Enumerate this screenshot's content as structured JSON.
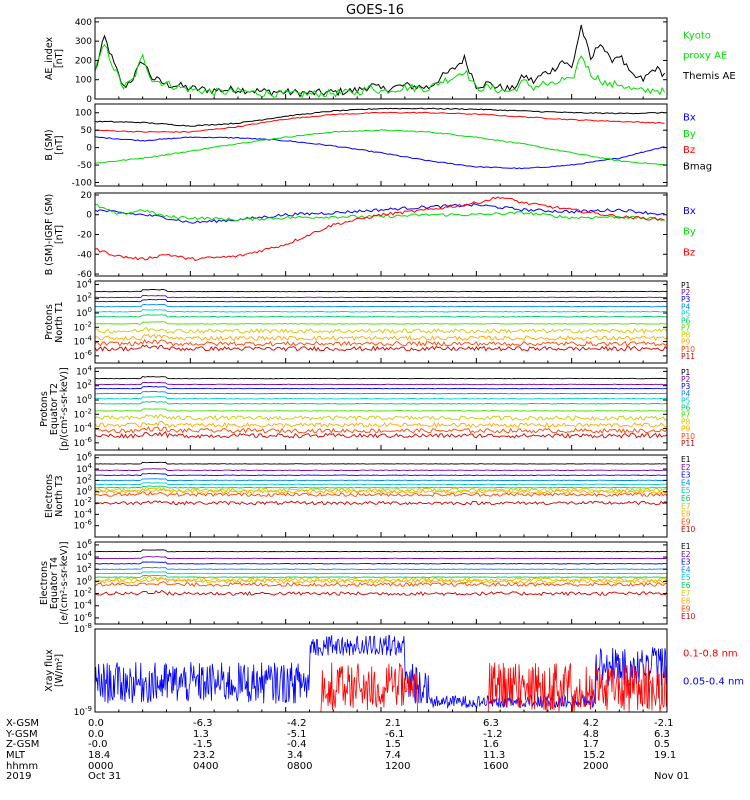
{
  "title": "GOES-16",
  "colors": {
    "black": "#000000",
    "blue": "#0000ff",
    "green": "#00dd00",
    "red": "#ff0000"
  },
  "chart_data": [
    {
      "type": "line",
      "panel": "AE index",
      "ylabel": [
        "AE_index",
        "[nT]"
      ],
      "ylim": [
        0,
        420
      ],
      "yticks": [
        "0",
        "100",
        "200",
        "300",
        "400"
      ],
      "ytick_values": [
        0,
        100,
        200,
        300,
        400
      ],
      "legend": [
        {
          "label": "Kyoto",
          "color": "green"
        },
        {
          "label": "proxy AE",
          "color": "green"
        },
        {
          "label": "Themis AE",
          "color": "black"
        }
      ],
      "series": [
        {
          "name": "Themis AE",
          "color": "black",
          "x": [
            0,
            0.4,
            0.8,
            1.2,
            1.6,
            2.0,
            2.4,
            3.0,
            3.5,
            4.0,
            5.0,
            6.0,
            7.0,
            8.0,
            9.0,
            10.0,
            11.0,
            11.6,
            12.0,
            13.0,
            14.0,
            14.5,
            15.0,
            15.5,
            16.0,
            16.5,
            17.0,
            17.5,
            18.0,
            18.4,
            18.8,
            19.2,
            19.6,
            20.0,
            20.4,
            20.8,
            21.2,
            21.6,
            22.0,
            22.5,
            23.0,
            23.5,
            24.0
          ],
          "y": [
            140,
            320,
            180,
            60,
            110,
            200,
            110,
            75,
            70,
            55,
            45,
            50,
            40,
            35,
            30,
            35,
            45,
            70,
            50,
            70,
            60,
            110,
            150,
            210,
            70,
            80,
            60,
            50,
            120,
            90,
            130,
            150,
            200,
            160,
            380,
            200,
            300,
            200,
            230,
            120,
            100,
            160,
            120
          ]
        },
        {
          "name": "Kyoto proxy AE",
          "color": "green",
          "x": [
            0,
            0.4,
            0.8,
            1.2,
            1.6,
            2.0,
            2.4,
            3.0,
            3.5,
            4.0,
            5.0,
            6.0,
            7.0,
            8.0,
            9.0,
            10.0,
            11.0,
            11.6,
            12.0,
            13.0,
            14.0,
            14.5,
            15.0,
            15.5,
            16.0,
            16.5,
            17.0,
            17.5,
            18.0,
            18.4,
            18.8,
            19.2,
            19.6,
            20.0,
            20.4,
            20.8,
            21.2,
            21.6,
            22.0,
            22.5,
            23.0,
            23.5,
            24.0
          ],
          "y": [
            150,
            280,
            160,
            60,
            100,
            220,
            100,
            80,
            60,
            50,
            35,
            40,
            30,
            25,
            25,
            30,
            35,
            60,
            40,
            60,
            55,
            90,
            110,
            150,
            55,
            60,
            45,
            40,
            90,
            60,
            80,
            70,
            100,
            90,
            230,
            130,
            100,
            70,
            80,
            50,
            40,
            50,
            30
          ]
        }
      ]
    },
    {
      "type": "line",
      "panel": "B (SM)",
      "ylabel": [
        "B (SM)",
        "[nT]"
      ],
      "ylim": [
        -110,
        125
      ],
      "yticks": [
        "-100",
        "-50",
        "0",
        "50",
        "100"
      ],
      "ytick_values": [
        -100,
        -50,
        0,
        50,
        100
      ],
      "legend": [
        {
          "label": "Bx",
          "color": "blue"
        },
        {
          "label": "By",
          "color": "green"
        },
        {
          "label": "Bz",
          "color": "red"
        },
        {
          "label": "Bmag",
          "color": "black"
        }
      ],
      "series": [
        {
          "name": "Bx",
          "color": "blue",
          "x": [
            0,
            2,
            4,
            6,
            8,
            10,
            12,
            14,
            16,
            18,
            20,
            22,
            24
          ],
          "y": [
            30,
            20,
            30,
            28,
            20,
            5,
            -15,
            -38,
            -55,
            -60,
            -50,
            -30,
            5
          ]
        },
        {
          "name": "By",
          "color": "green",
          "x": [
            0,
            2,
            4,
            6,
            8,
            10,
            12,
            14,
            16,
            18,
            20,
            22,
            24
          ],
          "y": [
            -45,
            -30,
            -10,
            12,
            30,
            45,
            50,
            45,
            30,
            10,
            -15,
            -38,
            -50
          ]
        },
        {
          "name": "Bz",
          "color": "red",
          "x": [
            0,
            2,
            4,
            6,
            8,
            10,
            12,
            14,
            16,
            18,
            20,
            22,
            24
          ],
          "y": [
            50,
            45,
            45,
            60,
            82,
            95,
            100,
            100,
            96,
            88,
            80,
            75,
            70
          ]
        },
        {
          "name": "Bmag",
          "color": "black",
          "x": [
            0,
            2,
            4,
            6,
            8,
            10,
            12,
            14,
            16,
            18,
            20,
            22,
            24
          ],
          "y": [
            75,
            72,
            62,
            70,
            90,
            105,
            112,
            112,
            110,
            105,
            100,
            98,
            100
          ]
        }
      ]
    },
    {
      "type": "line",
      "panel": "B (SM)-IGRF (SM)",
      "ylabel": [
        "B (SM)-IGRF (SM)",
        "[nT]"
      ],
      "ylim": [
        -62,
        22
      ],
      "yticks": [
        "-60",
        "-40",
        "-20",
        "0",
        "20"
      ],
      "ytick_values": [
        -60,
        -40,
        -20,
        0,
        20
      ],
      "legend": [
        {
          "label": "Bx",
          "color": "blue"
        },
        {
          "label": "By",
          "color": "green"
        },
        {
          "label": "Bz",
          "color": "red"
        }
      ],
      "series": [
        {
          "name": "Bx",
          "color": "blue",
          "x": [
            0,
            1,
            2,
            3,
            4,
            6,
            8,
            10,
            12,
            14,
            16,
            18,
            20,
            22,
            24
          ],
          "y": [
            5,
            2,
            0,
            -3,
            -8,
            -5,
            0,
            2,
            5,
            8,
            10,
            5,
            3,
            5,
            0
          ]
        },
        {
          "name": "By",
          "color": "green",
          "x": [
            0,
            1,
            2,
            3,
            4,
            6,
            8,
            10,
            12,
            14,
            16,
            18,
            20,
            22,
            24
          ],
          "y": [
            10,
            0,
            5,
            -2,
            -3,
            -5,
            -3,
            -2,
            -2,
            0,
            0,
            2,
            -3,
            -2,
            -5
          ]
        },
        {
          "name": "Bz",
          "color": "red",
          "x": [
            0,
            1,
            2,
            3,
            4,
            6,
            8,
            9,
            10,
            12,
            14,
            16,
            17,
            18,
            20,
            22,
            24
          ],
          "y": [
            -35,
            -42,
            -45,
            -40,
            -45,
            -42,
            -30,
            -20,
            -10,
            0,
            5,
            12,
            18,
            12,
            5,
            -2,
            -5
          ]
        }
      ]
    },
    {
      "type": "line",
      "panel": "Protons North T1",
      "ylabel": [
        "Protons",
        "North T1"
      ],
      "yscale": "log",
      "ylim": [
        1e-07,
        30000.0
      ],
      "yticks": [
        "10^4",
        "10^2",
        "10^0",
        "10^-2",
        "10^-4",
        "10^-6"
      ],
      "ytick_values": [
        10000,
        100,
        1,
        0.01,
        0.0001,
        1e-06
      ],
      "legend": [
        "P1",
        "P2",
        "P3",
        "P4",
        "P5",
        "P6",
        "P7",
        "P8",
        "P9",
        "P10",
        "P11"
      ],
      "channel_levels": [
        1000,
        150,
        40,
        8,
        1.5,
        0.3,
        0.03,
        0.003,
        0.0003,
        5e-05,
        1e-05
      ],
      "channel_colors": [
        "#000000",
        "#7700aa",
        "#0000ff",
        "#0088ff",
        "#00cccc",
        "#00cc66",
        "#44dd00",
        "#cccc00",
        "#ffaa00",
        "#ff4400",
        "#cc0000"
      ]
    },
    {
      "type": "line",
      "panel": "Protons Equator T2",
      "ylabel": [
        "Protons",
        "Equator T2",
        "[p/(cm²-s-sr-keV)]"
      ],
      "yscale": "log",
      "ylim": [
        1e-07,
        30000.0
      ],
      "yticks": [
        "10^4",
        "10^2",
        "10^0",
        "10^-2",
        "10^-4",
        "10^-6"
      ],
      "ytick_values": [
        10000,
        100,
        1,
        0.01,
        0.0001,
        1e-06
      ],
      "legend": [
        "P1",
        "P2",
        "P3",
        "P4",
        "P5",
        "P6",
        "P7",
        "P8",
        "P9",
        "P10",
        "P11"
      ],
      "channel_levels": [
        1000,
        150,
        40,
        8,
        1.5,
        0.3,
        0.03,
        0.003,
        0.0003,
        5e-05,
        1e-05
      ],
      "channel_colors": [
        "#000000",
        "#7700aa",
        "#0000ff",
        "#0088ff",
        "#00cccc",
        "#00cc66",
        "#44dd00",
        "#cccc00",
        "#ffaa00",
        "#ff4400",
        "#cc0000"
      ]
    },
    {
      "type": "line",
      "panel": "Electrons North T3",
      "ylabel": [
        "Electrons",
        "North T3"
      ],
      "yscale": "log",
      "ylim": [
        1e-08,
        3000000.0
      ],
      "yticks": [
        "10^6",
        "10^4",
        "10^2",
        "10^0",
        "10^-2",
        "10^-4",
        "10^-6"
      ],
      "ytick_values": [
        1000000,
        10000,
        100,
        1,
        0.01,
        0.0001,
        1e-06
      ],
      "legend": [
        "E1",
        "E2",
        "E3",
        "E4",
        "E5",
        "E6",
        "E7",
        "E8",
        "E9",
        "E10"
      ],
      "channel_levels": [
        80000,
        6000,
        800,
        100,
        20,
        5,
        2,
        1,
        0.3,
        0.01
      ],
      "channel_colors": [
        "#000000",
        "#7700aa",
        "#0000ff",
        "#0088ff",
        "#00cccc",
        "#00cc66",
        "#cccc00",
        "#ffaa00",
        "#ff4400",
        "#cc0000"
      ]
    },
    {
      "type": "line",
      "panel": "Electrons Equator T4",
      "ylabel": [
        "Electrons",
        "Equator T4",
        "[e/(cm²-s-sr-keV)]"
      ],
      "yscale": "log",
      "ylim": [
        1e-07,
        3000000.0
      ],
      "yticks": [
        "10^6",
        "10^4",
        "10^2",
        "10^0",
        "10^-2",
        "10^-4",
        "10^-6"
      ],
      "ytick_values": [
        1000000,
        10000,
        100,
        1,
        0.01,
        0.0001,
        1e-06
      ],
      "legend": [
        "E1",
        "E2",
        "E3",
        "E4",
        "E5",
        "E6",
        "E7",
        "E8",
        "E9",
        "E10"
      ],
      "channel_levels": [
        80000,
        6000,
        800,
        100,
        20,
        5,
        2,
        1,
        0.3,
        0.01
      ],
      "channel_colors": [
        "#000000",
        "#7700aa",
        "#0000ff",
        "#0088ff",
        "#00cccc",
        "#00cc66",
        "#cccc00",
        "#ffaa00",
        "#ff4400",
        "#cc0000"
      ]
    },
    {
      "type": "line",
      "panel": "Xray flux",
      "ylabel": [
        "Xray flux",
        "[W/m²]"
      ],
      "yscale": "log",
      "ylim": [
        1e-09,
        1e-08
      ],
      "yticks": [
        "10^-8",
        "10^-9"
      ],
      "ytick_values": [
        1e-08,
        1e-09
      ],
      "legend": [
        {
          "label": "0.1-0.8 nm",
          "color": "red"
        },
        {
          "label": "0.05-0.4 nm",
          "color": "blue"
        }
      ]
    }
  ],
  "ephemeris": {
    "row_labels": [
      "X-GSM",
      "Y-GSM",
      "Z-GSM",
      "MLT",
      "hhmm",
      "2019"
    ],
    "columns": [
      [
        "0.0",
        "0.0",
        "-0.0",
        "18.4",
        "0000",
        "Oct 31"
      ],
      [
        "-6.3",
        "1.3",
        "-1.5",
        "23.2",
        "0400",
        ""
      ],
      [
        "-4.2",
        "-5.1",
        "-0.4",
        "3.4",
        "0800",
        ""
      ],
      [
        "2.1",
        "-6.1",
        "1.5",
        "7.4",
        "1200",
        ""
      ],
      [
        "6.3",
        "-1.2",
        "1.6",
        "11.3",
        "1600",
        ""
      ],
      [
        "4.2",
        "4.8",
        "1.7",
        "15.2",
        "2000",
        ""
      ],
      [
        "-2.1",
        "6.3",
        "0.5",
        "19.1",
        "",
        "Nov 01"
      ]
    ]
  }
}
